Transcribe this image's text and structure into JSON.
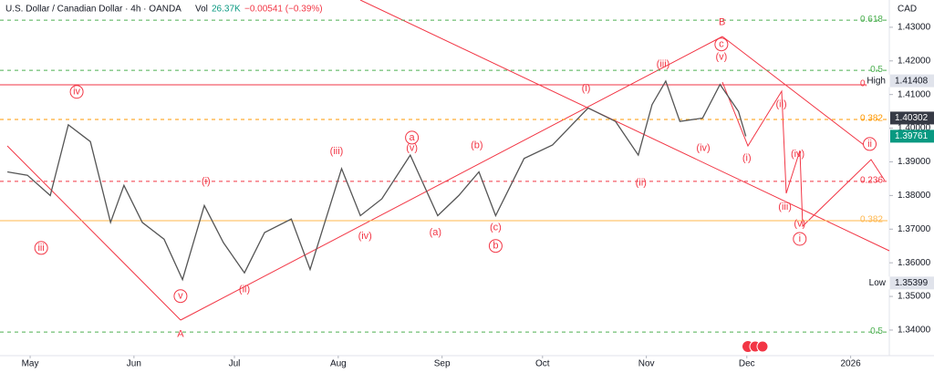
{
  "chart_data": {
    "type": "line",
    "title": "U.S. Dollar / Canadian Dollar · 4h · OANDA",
    "volume_label": "Vol",
    "volume": "26.37K",
    "change": "−0.00541 (−0.39%)",
    "currency": "CAD",
    "color": "#555555",
    "x": [
      -6.8,
      -0.8,
      6,
      11.4,
      18,
      24,
      28,
      33.5,
      40,
      45.5,
      52,
      57.7,
      64,
      70,
      78,
      83.6,
      93,
      98.6,
      105,
      113.5,
      121.7,
      128,
      134,
      139,
      147.5,
      156,
      166.6,
      174.8,
      181.6,
      185.7,
      189.8,
      194,
      200.8,
      206,
      211.5,
      213.7
    ],
    "values": [
      1.387,
      1.386,
      1.38,
      1.401,
      1.396,
      1.372,
      1.383,
      1.372,
      1.367,
      1.355,
      1.377,
      1.366,
      1.357,
      1.369,
      1.373,
      1.358,
      1.388,
      1.374,
      1.379,
      1.392,
      1.374,
      1.38,
      1.387,
      1.374,
      1.391,
      1.395,
      1.406,
      1.402,
      1.392,
      1.407,
      1.414,
      1.402,
      1.403,
      1.413,
      1.405,
      1.3976
    ],
    "xlim": [
      -9,
      256
    ],
    "xticks": [
      {
        "value": 0,
        "label": "May"
      },
      {
        "value": 31,
        "label": "Jun"
      },
      {
        "value": 61,
        "label": "Jul"
      },
      {
        "value": 92,
        "label": "Aug"
      },
      {
        "value": 123,
        "label": "Sep"
      },
      {
        "value": 153,
        "label": "Oct"
      },
      {
        "value": 184,
        "label": "Nov"
      },
      {
        "value": 214,
        "label": "Dec"
      },
      {
        "value": 245,
        "label": "2026"
      }
    ],
    "ylim": [
      1.3324,
      1.4381
    ],
    "yticks": [
      {
        "value": 1.43,
        "label": "1.43000"
      },
      {
        "value": 1.42,
        "label": "1.42000"
      },
      {
        "value": 1.41,
        "label": "1.41000"
      },
      {
        "value": 1.4,
        "label": "1.40000"
      },
      {
        "value": 1.39,
        "label": "1.39000"
      },
      {
        "value": 1.38,
        "label": "1.38000"
      },
      {
        "value": 1.37,
        "label": "1.37000"
      },
      {
        "value": 1.36,
        "label": "1.36000"
      },
      {
        "value": 1.35,
        "label": "1.35000"
      },
      {
        "value": 1.34,
        "label": "1.34000"
      }
    ],
    "price_labels": [
      {
        "label": "High",
        "value": 1.41408,
        "color": "#e0e3eb",
        "text_color": "#131722"
      },
      {
        "value": 1.40302,
        "color": "#363a45",
        "text_color": "#ffffff"
      },
      {
        "value": 1.39761,
        "color": "#089981",
        "text_color": "#ffffff"
      },
      {
        "label": "Low",
        "value": 1.35399,
        "color": "#e0e3eb",
        "text_color": "#131722"
      }
    ],
    "fib_levels": [
      {
        "label": "0.618",
        "value": 1.4321,
        "color": "#4caf50",
        "dashed": true
      },
      {
        "label": "0.5",
        "value": 1.4172,
        "color": "#4caf50",
        "dashed": true
      },
      {
        "label": "0.236",
        "value": 1.4129,
        "color": "#f23645",
        "dashed": false
      },
      {
        "label": "0.382",
        "value": 1.4026,
        "color": "#ff9800",
        "dashed": true
      },
      {
        "label": "0.236",
        "value": 1.3842,
        "color": "#f23645",
        "dashed": true
      },
      {
        "label": "0.382",
        "value": 1.3725,
        "color": "#ffb74d",
        "dashed": false
      },
      {
        "label": "0.5",
        "value": 1.3394,
        "color": "#4caf50",
        "dashed": true
      }
    ],
    "annotations": [
      {
        "text": "iv",
        "x": 13.9,
        "y": 1.4108,
        "circled": true
      },
      {
        "text": "iii",
        "x": 3.3,
        "y": 1.3644,
        "circled": true
      },
      {
        "text": "v",
        "x": 44.9,
        "y": 1.3501,
        "circled": true
      },
      {
        "text": "A",
        "x": 44.9,
        "y": 1.3387,
        "circled": false
      },
      {
        "text": "(i)",
        "x": 52.5,
        "y": 1.3842,
        "circled": false
      },
      {
        "text": "(ii)",
        "x": 64,
        "y": 1.352,
        "circled": false
      },
      {
        "text": "(iii)",
        "x": 91.5,
        "y": 1.3931,
        "circled": false
      },
      {
        "text": "(iv)",
        "x": 100,
        "y": 1.3679,
        "circled": false
      },
      {
        "text": "a",
        "x": 114,
        "y": 1.3972,
        "circled": true
      },
      {
        "text": "(v)",
        "x": 114,
        "y": 1.394,
        "circled": false
      },
      {
        "text": "(a)",
        "x": 121,
        "y": 1.369,
        "circled": false
      },
      {
        "text": "(b)",
        "x": 133.4,
        "y": 1.3948,
        "circled": false
      },
      {
        "text": "(c)",
        "x": 139,
        "y": 1.3704,
        "circled": false
      },
      {
        "text": "b",
        "x": 139,
        "y": 1.365,
        "circled": true
      },
      {
        "text": "(i)",
        "x": 166,
        "y": 1.4118,
        "circled": false
      },
      {
        "text": "(ii)",
        "x": 182.4,
        "y": 1.3837,
        "circled": false
      },
      {
        "text": "(iii)",
        "x": 189,
        "y": 1.4189,
        "circled": false
      },
      {
        "text": "B",
        "x": 206.6,
        "y": 1.4314,
        "circled": false
      },
      {
        "text": "c",
        "x": 206.4,
        "y": 1.4249,
        "circled": true
      },
      {
        "text": "(v)",
        "x": 206.4,
        "y": 1.4211,
        "circled": false
      },
      {
        "text": "(iv)",
        "x": 201,
        "y": 1.394,
        "circled": false
      },
      {
        "text": "(i)",
        "x": 214,
        "y": 1.391,
        "circled": false
      },
      {
        "text": "(ii)",
        "x": 224.3,
        "y": 1.407,
        "circled": false
      },
      {
        "text": "(iv)",
        "x": 229.2,
        "y": 1.3923,
        "circled": false
      },
      {
        "text": "(iii)",
        "x": 225.4,
        "y": 1.3766,
        "circled": false
      },
      {
        "text": "(v)",
        "x": 229.8,
        "y": 1.3715,
        "circled": false
      },
      {
        "text": "i",
        "x": 229.8,
        "y": 1.3671,
        "circled": true
      },
      {
        "text": "ii",
        "x": 250.7,
        "y": 1.3953,
        "circled": true
      }
    ],
    "annotation_color": "#f23645"
  }
}
